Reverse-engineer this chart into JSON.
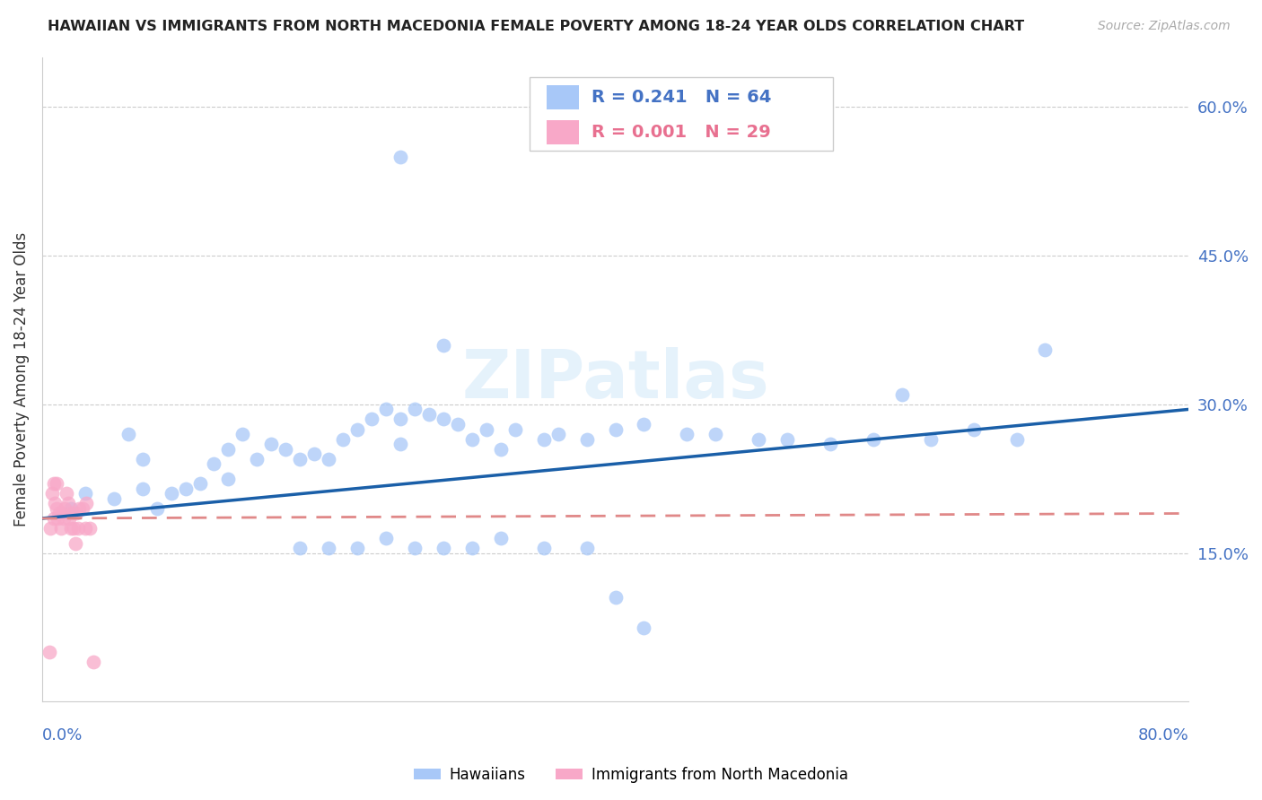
{
  "title": "HAWAIIAN VS IMMIGRANTS FROM NORTH MACEDONIA FEMALE POVERTY AMONG 18-24 YEAR OLDS CORRELATION CHART",
  "source": "Source: ZipAtlas.com",
  "ylabel": "Female Poverty Among 18-24 Year Olds",
  "ytick_labels": [
    "60.0%",
    "45.0%",
    "30.0%",
    "15.0%"
  ],
  "ytick_values": [
    0.6,
    0.45,
    0.3,
    0.15
  ],
  "xlim": [
    0.0,
    0.8
  ],
  "ylim": [
    0.0,
    0.65
  ],
  "legend_r1": "0.241",
  "legend_n1": "64",
  "legend_r2": "0.001",
  "legend_n2": "29",
  "hawaiians_color": "#a8c8f8",
  "immigrants_color": "#f8a8c8",
  "trendline_hawaiians_color": "#1a5fa8",
  "trendline_immigrants_color": "#e08888",
  "watermark": "ZIPatlas",
  "hawaiians_x": [
    0.02,
    0.03,
    0.05,
    0.06,
    0.07,
    0.07,
    0.08,
    0.09,
    0.1,
    0.11,
    0.12,
    0.13,
    0.13,
    0.14,
    0.15,
    0.16,
    0.17,
    0.18,
    0.19,
    0.2,
    0.21,
    0.22,
    0.23,
    0.24,
    0.25,
    0.25,
    0.26,
    0.27,
    0.28,
    0.29,
    0.3,
    0.31,
    0.32,
    0.33,
    0.35,
    0.36,
    0.38,
    0.4,
    0.42,
    0.45,
    0.47,
    0.5,
    0.52,
    0.55,
    0.58,
    0.6,
    0.62,
    0.65,
    0.68,
    0.7,
    0.18,
    0.2,
    0.22,
    0.24,
    0.26,
    0.28,
    0.3,
    0.32,
    0.35,
    0.38,
    0.4,
    0.42,
    0.25,
    0.28
  ],
  "hawaiians_y": [
    0.195,
    0.21,
    0.205,
    0.27,
    0.245,
    0.215,
    0.195,
    0.21,
    0.215,
    0.22,
    0.24,
    0.255,
    0.225,
    0.27,
    0.245,
    0.26,
    0.255,
    0.245,
    0.25,
    0.245,
    0.265,
    0.275,
    0.285,
    0.295,
    0.285,
    0.26,
    0.295,
    0.29,
    0.285,
    0.28,
    0.265,
    0.275,
    0.255,
    0.275,
    0.265,
    0.27,
    0.265,
    0.275,
    0.28,
    0.27,
    0.27,
    0.265,
    0.265,
    0.26,
    0.265,
    0.31,
    0.265,
    0.275,
    0.265,
    0.355,
    0.155,
    0.155,
    0.155,
    0.165,
    0.155,
    0.155,
    0.155,
    0.165,
    0.155,
    0.155,
    0.105,
    0.075,
    0.55,
    0.36
  ],
  "immigrants_x": [
    0.005,
    0.006,
    0.007,
    0.008,
    0.008,
    0.009,
    0.01,
    0.01,
    0.011,
    0.012,
    0.013,
    0.014,
    0.015,
    0.016,
    0.017,
    0.018,
    0.019,
    0.02,
    0.021,
    0.022,
    0.023,
    0.024,
    0.025,
    0.026,
    0.028,
    0.03,
    0.031,
    0.033,
    0.036
  ],
  "immigrants_y": [
    0.05,
    0.175,
    0.21,
    0.22,
    0.185,
    0.2,
    0.22,
    0.195,
    0.185,
    0.19,
    0.175,
    0.19,
    0.185,
    0.195,
    0.21,
    0.2,
    0.185,
    0.175,
    0.19,
    0.175,
    0.16,
    0.19,
    0.175,
    0.195,
    0.195,
    0.175,
    0.2,
    0.175,
    0.04
  ],
  "hawaiians_trendline_x": [
    0.0,
    0.8
  ],
  "hawaiians_trendline_y": [
    0.185,
    0.295
  ],
  "immigrants_trendline_x": [
    0.0,
    0.8
  ],
  "immigrants_trendline_y": [
    0.185,
    0.19
  ]
}
